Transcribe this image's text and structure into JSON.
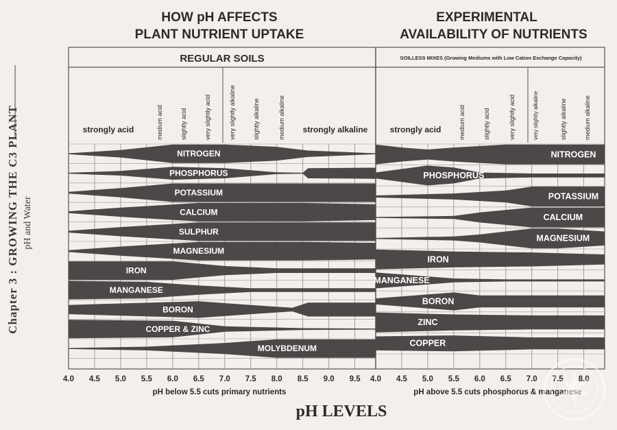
{
  "side": {
    "chapter": "Chapter 3 : GROWING THE C3 PLANT",
    "sub": "pH and Water"
  },
  "left": {
    "title_line1": "HOW pH AFFECTS",
    "title_line2": "PLANT NUTRIENT UPTAKE",
    "header": "REGULAR SOILS",
    "ranges": {
      "strongly_acid": "strongly acid",
      "medium_acid": "medium acid",
      "slightly_acid": "slightly acid",
      "very_slightly_acid": "very slightly acid",
      "very_slightly_alkaline": "very slightly alkaline",
      "slightly_alkaline": "slightly alkaline",
      "medium_alkaline": "medium alkaline",
      "strongly_alkaline": "strongly alkaline"
    },
    "nutrients": [
      "NITROGEN",
      "PHOSPHORUS",
      "POTASSIUM",
      "CALCIUM",
      "SULPHUR",
      "MAGNESIUM",
      "IRON",
      "MANGANESE",
      "BORON",
      "COPPER & ZINC",
      "MOLYBDENUM"
    ],
    "ticks": [
      "4.0",
      "4.5",
      "5.0",
      "5.5",
      "6.0",
      "6.5",
      "7.0",
      "7.5",
      "8.0",
      "8.5",
      "9.0",
      "9.5"
    ],
    "footnote": "pH below 5.5 cuts primary nutrients"
  },
  "right": {
    "title_line1": "EXPERIMENTAL",
    "title_line2": "AVAILABILITY OF NUTRIENTS",
    "header": "SOILLESS MIXES (Growing Mediums with Low Cation Exchange Capacity)",
    "ranges": {
      "strongly_acid": "strongly acid",
      "medium_acid": "medium acid",
      "slightly_acid": "slightly acid",
      "very_slightly_acid": "very slightly acid",
      "very_slightly_alkaline": "very slightly alkaline",
      "slightly_alkaline": "slightly alkaline",
      "medium_alkaline": "medium alkaline"
    },
    "nutrients": [
      "NITROGEN",
      "PHOSPHORUS",
      "POTASSIUM",
      "CALCIUM",
      "MAGNESIUM",
      "IRON",
      "MANGANESE",
      "BORON",
      "ZINC",
      "COPPER"
    ],
    "ticks": [
      "4.0",
      "4.5",
      "5.0",
      "5.5",
      "6.0",
      "6.5",
      "7.0",
      "7.5",
      "8.0"
    ],
    "footnote": "pH above 5.5 cuts phosphorus & manganese"
  },
  "axis_title": "pH LEVELS",
  "colors": {
    "band": "#4d4848",
    "paper": "#f3efec",
    "line": "#555555"
  }
}
